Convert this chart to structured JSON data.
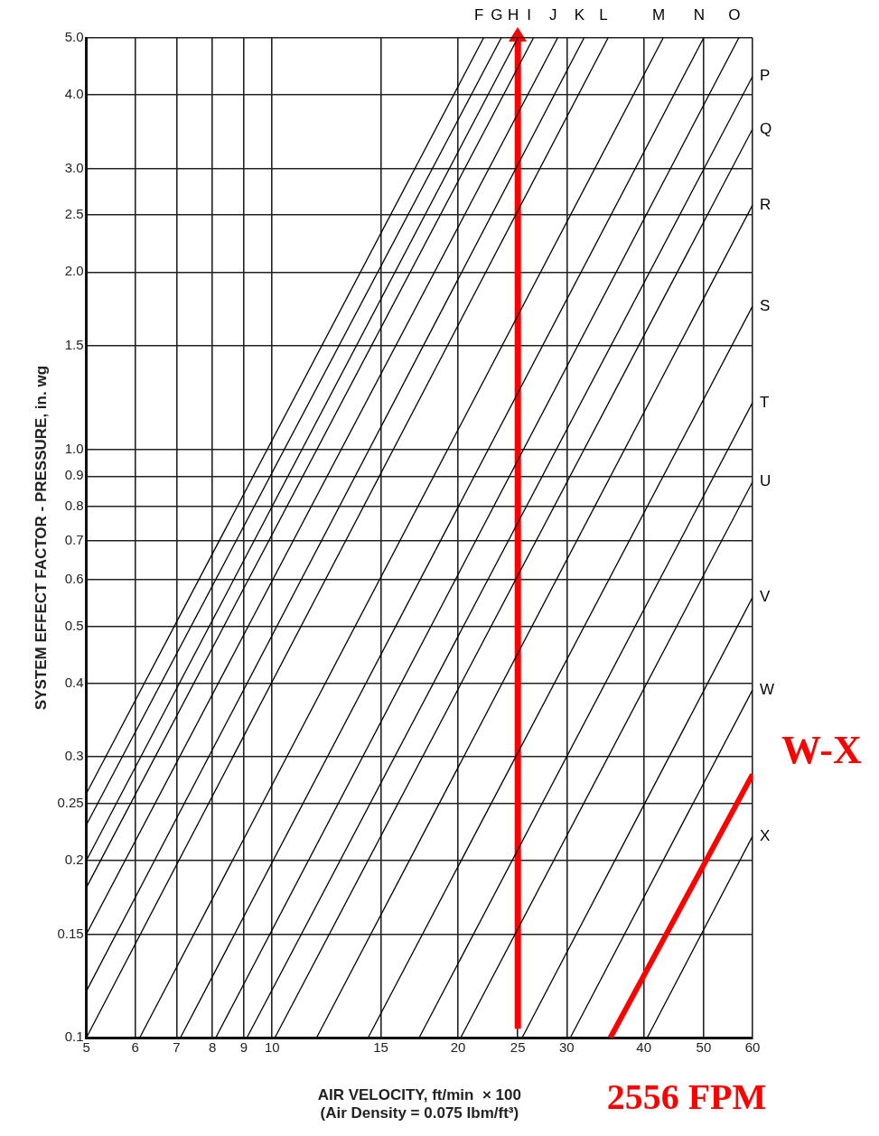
{
  "chart_data": {
    "type": "line",
    "xlabel": "AIR VELOCITY, ft/min  × 100\n(Air Density = 0.075 lbm/ft³)",
    "ylabel": "SYSTEM EFFECT FACTOR - PRESSURE, in. wg",
    "log": "xy",
    "grid": true,
    "legend": false,
    "marker": "none",
    "line_style": "solid",
    "xlim": [
      5,
      60
    ],
    "xticks": [
      5,
      6,
      7,
      8,
      9,
      10,
      15,
      20,
      25,
      30,
      40,
      50,
      60
    ],
    "ylim": [
      0.1,
      5
    ],
    "yticks": [
      0.1,
      0.15,
      0.2,
      0.25,
      0.3,
      0.4,
      0.5,
      0.6,
      0.7,
      0.8,
      0.9,
      {
        "value": 1,
        "label": "1.0"
      },
      1.5,
      {
        "value": 2,
        "label": "2.0"
      },
      2.5,
      {
        "value": 3,
        "label": "3.0"
      },
      {
        "value": 4,
        "label": "4.0"
      },
      {
        "value": 5,
        "label": "5.0"
      }
    ],
    "series": [
      {
        "name": "F",
        "color": "#000000",
        "x": [
          5,
          22
        ],
        "values": [
          0.26,
          5
        ]
      },
      {
        "name": "G",
        "color": "#000000",
        "x": [
          5,
          23.5
        ],
        "values": [
          0.23,
          5
        ]
      },
      {
        "name": "H",
        "color": "#000000",
        "x": [
          5,
          25
        ],
        "values": [
          0.2,
          5
        ]
      },
      {
        "name": "I",
        "color": "#000000",
        "x": [
          5,
          26.5
        ],
        "values": [
          0.18,
          5
        ]
      },
      {
        "name": "J",
        "color": "#000000",
        "x": [
          5,
          29
        ],
        "values": [
          0.15,
          5
        ]
      },
      {
        "name": "K",
        "color": "#000000",
        "x": [
          5,
          32
        ],
        "values": [
          0.12,
          5
        ]
      },
      {
        "name": "L",
        "color": "#000000",
        "x": [
          5,
          35
        ],
        "values": [
          0.1,
          5
        ]
      },
      {
        "name": "M",
        "color": "#000000",
        "x": [
          6.1,
          43
        ],
        "values": [
          0.1,
          5
        ]
      },
      {
        "name": "N",
        "color": "#000000",
        "x": [
          7.1,
          50
        ],
        "values": [
          0.1,
          5
        ]
      },
      {
        "name": "O",
        "color": "#000000",
        "x": [
          8.1,
          57
        ],
        "values": [
          0.1,
          5
        ]
      },
      {
        "name": "P",
        "color": "#000000",
        "x": [
          9.1,
          60
        ],
        "values": [
          0.1,
          4.3
        ]
      },
      {
        "name": "Q",
        "color": "#000000",
        "x": [
          10.1,
          60
        ],
        "values": [
          0.1,
          3.5
        ]
      },
      {
        "name": "R",
        "color": "#000000",
        "x": [
          11.8,
          60
        ],
        "values": [
          0.1,
          2.6
        ]
      },
      {
        "name": "S",
        "color": "#000000",
        "x": [
          14.3,
          60
        ],
        "values": [
          0.1,
          1.75
        ]
      },
      {
        "name": "T",
        "color": "#000000",
        "x": [
          17.3,
          60
        ],
        "values": [
          0.1,
          1.2
        ]
      },
      {
        "name": "U",
        "color": "#000000",
        "x": [
          20.2,
          60
        ],
        "values": [
          0.1,
          0.88
        ]
      },
      {
        "name": "V",
        "color": "#000000",
        "x": [
          25.4,
          60
        ],
        "values": [
          0.1,
          0.56
        ]
      },
      {
        "name": "W",
        "color": "#000000",
        "x": [
          30.4,
          60
        ],
        "values": [
          0.1,
          0.39
        ]
      },
      {
        "name": "X",
        "color": "#000000",
        "x": [
          40.5,
          60
        ],
        "values": [
          0.1,
          0.22
        ]
      },
      {
        "name": "W-X",
        "color": "#ff0000",
        "x": [
          35.3,
          60
        ],
        "values": [
          0.1,
          0.28
        ]
      }
    ],
    "ref_lines": [
      {
        "axis": "x",
        "value": 25,
        "color": "#ff0000"
      }
    ],
    "annotations": [
      "2556 FPM"
    ]
  }
}
